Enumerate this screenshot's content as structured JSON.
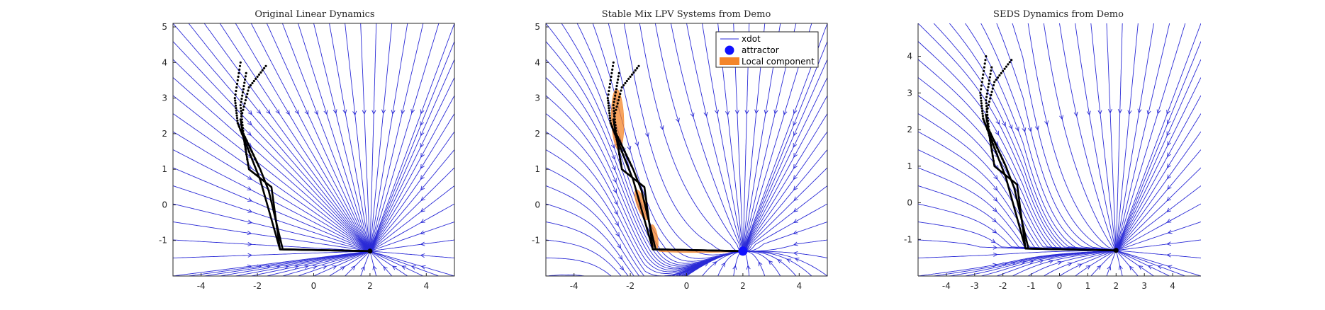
{
  "figure": {
    "colors": {
      "streamline": "#2a2ad6",
      "trajectory": "#000000",
      "attractor": "#1010ff",
      "local_component": "#f4852a",
      "axes": "#262626"
    }
  },
  "chart_data": [
    {
      "type": "streamplot",
      "title": "Original Linear Dynamics",
      "xlabel": "",
      "ylabel": "",
      "xlim": [
        -5,
        5
      ],
      "ylim": [
        -2,
        5.1
      ],
      "xticks": [
        -4,
        -2,
        0,
        2,
        4
      ],
      "xtick_labels": [
        "-4",
        "-2",
        "0",
        "2",
        "4"
      ],
      "yticks": [
        -1,
        0,
        1,
        2,
        3,
        4,
        5
      ],
      "ytick_labels": [
        "-1",
        "0",
        "1",
        "2",
        "3",
        "4",
        "5"
      ],
      "dynamics": "linear",
      "attractor": [
        2,
        -1.3
      ],
      "attractor_marker": "small",
      "demonstrations": [
        {
          "x": [
            -2.6,
            -2.8,
            -2.7,
            -2.2,
            -1.9,
            -1.2,
            2.0
          ],
          "y": [
            4.0,
            3.0,
            2.3,
            1.3,
            0.7,
            -1.25,
            -1.3
          ]
        },
        {
          "x": [
            -2.4,
            -2.6,
            -2.5,
            -1.9,
            -1.6,
            -1.1,
            2.0
          ],
          "y": [
            3.7,
            2.8,
            2.0,
            1.0,
            0.4,
            -1.25,
            -1.3
          ]
        },
        {
          "x": [
            -1.7,
            -2.3,
            -2.6,
            -2.3,
            -1.5,
            -1.2,
            2.0
          ],
          "y": [
            3.9,
            3.3,
            2.4,
            1.0,
            0.5,
            -1.25,
            -1.3
          ]
        }
      ],
      "legend": null,
      "local_components": []
    },
    {
      "type": "streamplot",
      "title": "Stable Mix LPV Systems from Demo",
      "xlabel": "",
      "ylabel": "",
      "xlim": [
        -5,
        5
      ],
      "ylim": [
        -2,
        5.1
      ],
      "xticks": [
        -4,
        -2,
        0,
        2,
        4
      ],
      "xtick_labels": [
        "-4",
        "-2",
        "0",
        "2",
        "4"
      ],
      "yticks": [
        -1,
        0,
        1,
        2,
        3,
        4,
        5
      ],
      "ytick_labels": [
        "-1",
        "0",
        "1",
        "2",
        "3",
        "4",
        "5"
      ],
      "dynamics": "lpv",
      "attractor": [
        2,
        -1.3
      ],
      "attractor_marker": "large",
      "demonstrations": [
        {
          "x": [
            -2.6,
            -2.8,
            -2.7,
            -2.2,
            -1.9,
            -1.2,
            2.0
          ],
          "y": [
            4.0,
            3.0,
            2.3,
            1.3,
            0.7,
            -1.25,
            -1.3
          ]
        },
        {
          "x": [
            -2.4,
            -2.6,
            -2.5,
            -1.9,
            -1.6,
            -1.1,
            2.0
          ],
          "y": [
            3.7,
            2.8,
            2.0,
            1.0,
            0.4,
            -1.25,
            -1.3
          ]
        },
        {
          "x": [
            -1.7,
            -2.3,
            -2.6,
            -2.3,
            -1.5,
            -1.2,
            2.0
          ],
          "y": [
            3.9,
            3.3,
            2.4,
            1.0,
            0.5,
            -1.25,
            -1.3
          ]
        }
      ],
      "legend": {
        "placement": "top-right",
        "entries": [
          "xdot",
          "attractor",
          "Local component"
        ]
      },
      "local_components": [
        {
          "center": [
            -2.45,
            2.4
          ],
          "semi_axes": [
            0.22,
            0.85
          ],
          "rotation_deg": -2
        },
        {
          "center": [
            -1.6,
            0.0
          ],
          "semi_axes": [
            0.16,
            0.45
          ],
          "rotation_deg": -20
        },
        {
          "center": [
            -1.15,
            -0.9
          ],
          "semi_axes": [
            0.12,
            0.35
          ],
          "rotation_deg": -10
        },
        {
          "center": [
            0.4,
            -1.3
          ],
          "semi_axes": [
            1.4,
            0.04
          ],
          "rotation_deg": 0
        }
      ]
    },
    {
      "type": "streamplot",
      "title": "SEDS Dynamics from Demo",
      "xlabel": "",
      "ylabel": "",
      "xlim": [
        -5,
        5
      ],
      "ylim": [
        -2,
        4.9
      ],
      "xticks": [
        -4,
        -3,
        -2,
        -1,
        0,
        1,
        2,
        3,
        4
      ],
      "xtick_labels": [
        "-4",
        "-3",
        "-2",
        "-1",
        "0",
        "1",
        "2",
        "3",
        "4"
      ],
      "yticks": [
        -1,
        0,
        1,
        2,
        3,
        4
      ],
      "ytick_labels": [
        "-1",
        "0",
        "1",
        "2",
        "3",
        "4"
      ],
      "dynamics": "seds",
      "attractor": [
        2,
        -1.3
      ],
      "attractor_marker": "small",
      "demonstrations": [
        {
          "x": [
            -2.6,
            -2.8,
            -2.7,
            -2.2,
            -1.9,
            -1.2,
            2.0
          ],
          "y": [
            4.0,
            3.0,
            2.3,
            1.3,
            0.7,
            -1.25,
            -1.3
          ]
        },
        {
          "x": [
            -2.4,
            -2.6,
            -2.5,
            -1.9,
            -1.6,
            -1.1,
            2.0
          ],
          "y": [
            3.7,
            2.8,
            2.0,
            1.0,
            0.4,
            -1.25,
            -1.3
          ]
        },
        {
          "x": [
            -1.7,
            -2.3,
            -2.6,
            -2.3,
            -1.5,
            -1.2,
            2.0
          ],
          "y": [
            3.9,
            3.3,
            2.4,
            1.0,
            0.5,
            -1.25,
            -1.3
          ]
        }
      ],
      "legend": null,
      "local_components": []
    }
  ]
}
